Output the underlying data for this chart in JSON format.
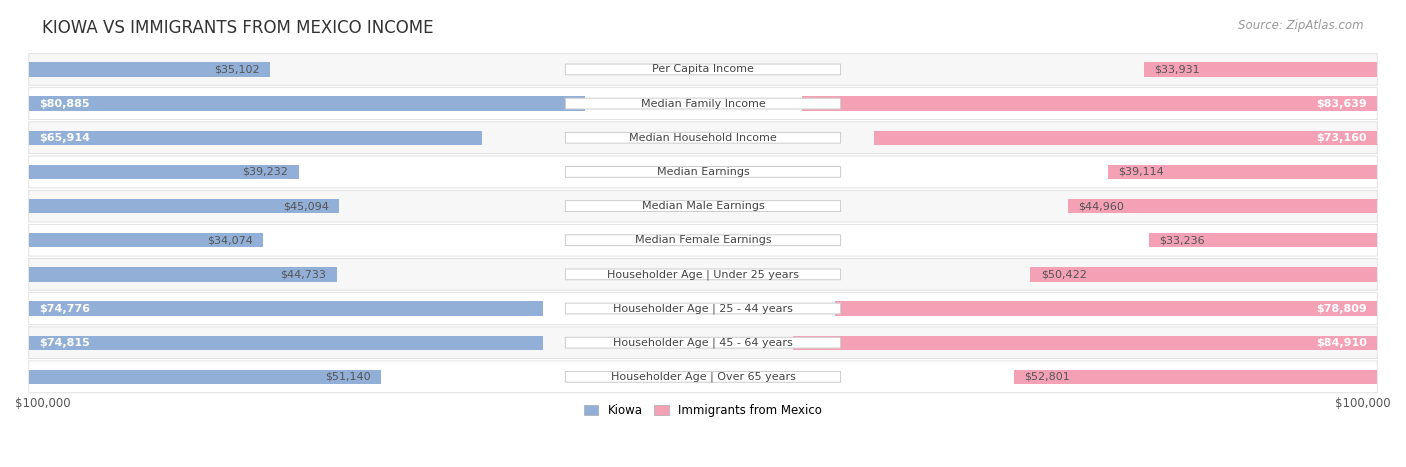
{
  "title": "KIOWA VS IMMIGRANTS FROM MEXICO INCOME",
  "source": "Source: ZipAtlas.com",
  "categories": [
    "Per Capita Income",
    "Median Family Income",
    "Median Household Income",
    "Median Earnings",
    "Median Male Earnings",
    "Median Female Earnings",
    "Householder Age | Under 25 years",
    "Householder Age | 25 - 44 years",
    "Householder Age | 45 - 64 years",
    "Householder Age | Over 65 years"
  ],
  "kiowa_values": [
    35102,
    80885,
    65914,
    39232,
    45094,
    34074,
    44733,
    74776,
    74815,
    51140
  ],
  "mexico_values": [
    33931,
    83639,
    73160,
    39114,
    44960,
    33236,
    50422,
    78809,
    84910,
    52801
  ],
  "kiowa_labels": [
    "$35,102",
    "$80,885",
    "$65,914",
    "$39,232",
    "$45,094",
    "$34,074",
    "$44,733",
    "$74,776",
    "$74,815",
    "$51,140"
  ],
  "mexico_labels": [
    "$33,931",
    "$83,639",
    "$73,160",
    "$39,114",
    "$44,960",
    "$33,236",
    "$50,422",
    "$78,809",
    "$84,910",
    "$52,801"
  ],
  "kiowa_color": "#92afd7",
  "mexico_color": "#f4a0b5",
  "kiowa_dark_color": "#5b8fc9",
  "mexico_dark_color": "#e8607a",
  "max_value": 100000,
  "xlabel_left": "$100,000",
  "xlabel_right": "$100,000",
  "legend_kiowa": "Kiowa",
  "legend_mexico": "Immigrants from Mexico",
  "title_fontsize": 12,
  "source_fontsize": 8.5,
  "label_fontsize": 8,
  "category_fontsize": 8,
  "row_bg_light": "#f7f7f7",
  "row_bg_white": "#ffffff",
  "row_border": "#dddddd",
  "cat_box_color": "#ffffff",
  "cat_box_border": "#cccccc",
  "inside_label_threshold": 55000
}
